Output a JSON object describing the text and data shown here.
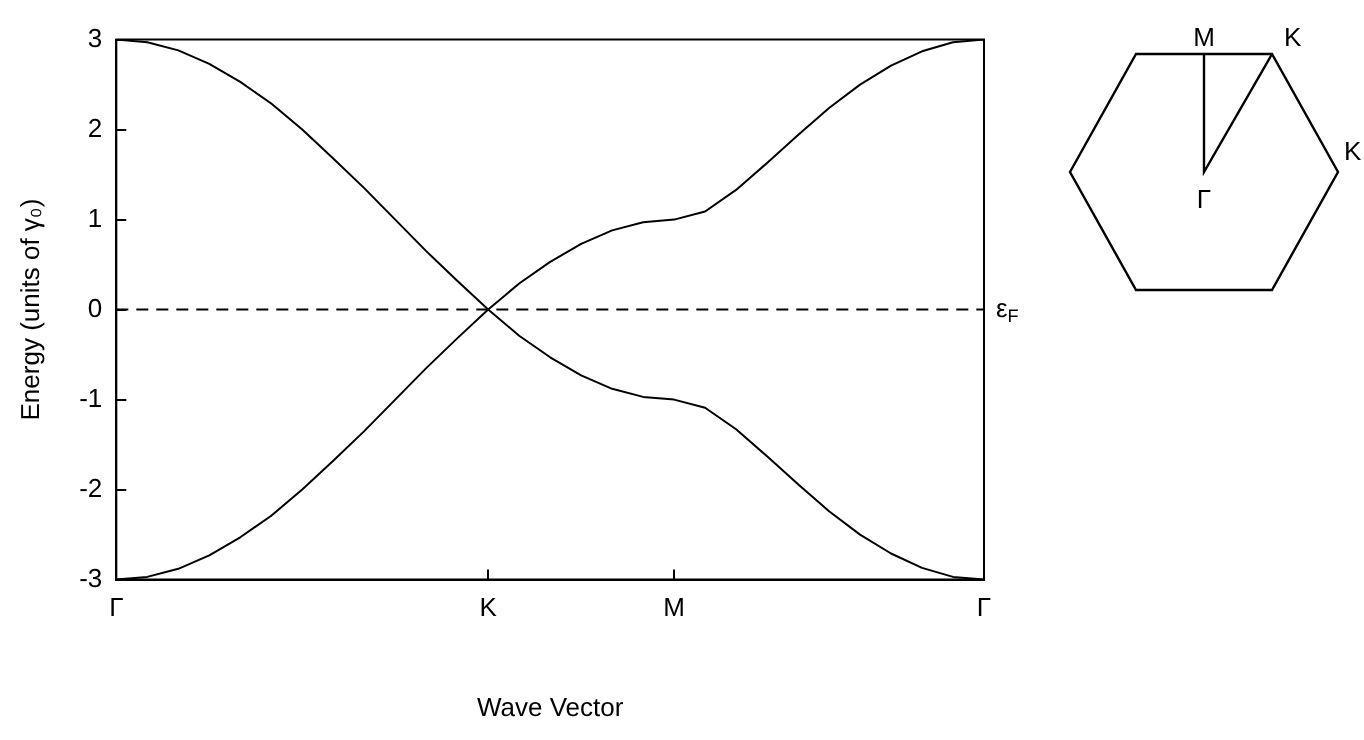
{
  "chart_data": {
    "type": "line",
    "xlabel": "Wave Vector",
    "ylabel": "Energy (units of γ₀)",
    "categories": [
      "Γ",
      null,
      null,
      null,
      null,
      null,
      null,
      null,
      null,
      null,
      null,
      null,
      "K",
      null,
      null,
      null,
      null,
      null,
      "M",
      null,
      null,
      null,
      null,
      null,
      null,
      null,
      null,
      null,
      "Γ"
    ],
    "series": [
      {
        "color": "#000000",
        "values": [
          3,
          2.97,
          2.88,
          2.73,
          2.53,
          2.29,
          2,
          1.68,
          1.35,
          1,
          0.65,
          0.32,
          0,
          -0.29,
          -0.53,
          -0.73,
          -0.88,
          -0.97,
          -1,
          -1.09,
          -1.33,
          -1.63,
          -1.94,
          -2.24,
          -2.5,
          -2.71,
          -2.87,
          -2.97,
          -3
        ]
      },
      {
        "color": "#000000",
        "values": [
          -3,
          -2.97,
          -2.88,
          -2.73,
          -2.53,
          -2.29,
          -2,
          -1.68,
          -1.35,
          -1,
          -0.65,
          -0.32,
          0,
          0.29,
          0.53,
          0.73,
          0.88,
          0.97,
          1,
          1.09,
          1.33,
          1.63,
          1.94,
          2.24,
          2.5,
          2.71,
          2.87,
          2.97,
          3
        ]
      }
    ],
    "ylim": [
      -3,
      3
    ],
    "yticks": [
      -3,
      -2,
      -1,
      0,
      1,
      2,
      3
    ],
    "ref_lines": [
      {
        "axis": "y",
        "value": 0,
        "label": "ε$_{F}$",
        "color": "#000000",
        "line_style": "dashed"
      }
    ],
    "annotations": [
      "M",
      "K",
      "K",
      "Γ"
    ],
    "grid": false,
    "legend": false,
    "marker": "none",
    "line_style": "solid"
  }
}
